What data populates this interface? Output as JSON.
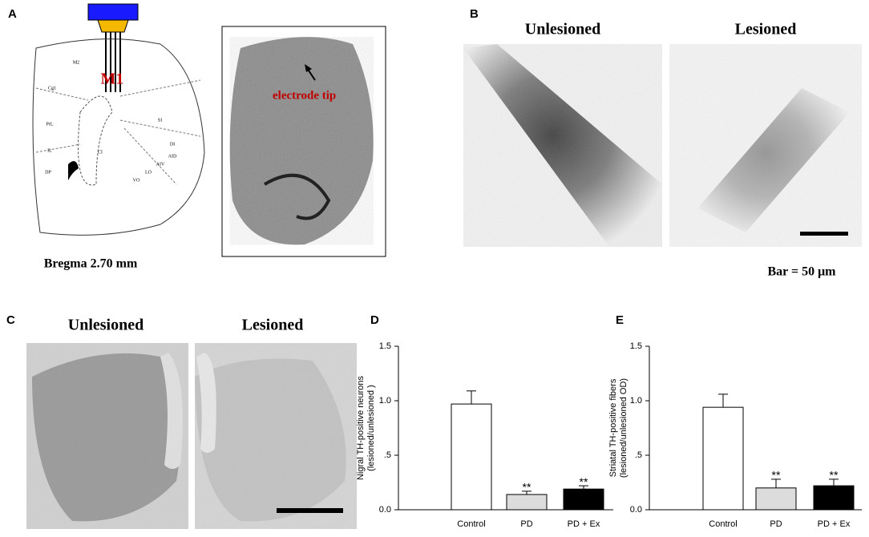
{
  "panels": {
    "A": {
      "label": "A",
      "region": "M1",
      "caption": "Bregma 2.70 mm",
      "annotation": "electrode tip",
      "atlas_labels": [
        "M2",
        "Cg1",
        "PrL",
        "IL",
        "DP",
        "Cl",
        "S1",
        "AIV",
        "LO",
        "VO",
        "AID",
        "DI"
      ]
    },
    "B": {
      "label": "B",
      "left_title": "Unlesioned",
      "right_title": "Lesioned",
      "scale": "Bar = 50 μm"
    },
    "C": {
      "label": "C",
      "left_title": "Unlesioned",
      "right_title": "Lesioned"
    }
  },
  "chart_data": [
    {
      "type": "bar",
      "label": "D",
      "ylabel": [
        "Nigral TH-positive neurons",
        "(lesioned/unlesioned )"
      ],
      "categories": [
        "Control",
        "PD",
        "PD + Ex"
      ],
      "values": [
        0.97,
        0.14,
        0.19
      ],
      "errors": [
        0.12,
        0.03,
        0.03
      ],
      "value_annotations": [
        null,
        "**",
        "**"
      ],
      "colors": [
        "#ffffff",
        "#dcdcdc",
        "#000000"
      ],
      "ylim": [
        0,
        1.5
      ],
      "yticks": [
        {
          "value": 0,
          "label": "0.0"
        },
        {
          "value": 0.5,
          "label": ".5"
        },
        {
          "value": 1,
          "label": "1.0"
        },
        {
          "value": 1.5,
          "label": "1.5"
        }
      ]
    },
    {
      "type": "bar",
      "label": "E",
      "ylabel": [
        "Striatal TH-positive fibers",
        "(lesioned/unlesioned OD)"
      ],
      "categories": [
        "Control",
        "PD",
        "PD + Ex"
      ],
      "values": [
        0.94,
        0.2,
        0.22
      ],
      "errors": [
        0.12,
        0.08,
        0.06
      ],
      "value_annotations": [
        null,
        "**",
        "**"
      ],
      "colors": [
        "#ffffff",
        "#dcdcdc",
        "#000000"
      ],
      "ylim": [
        0,
        1.5
      ],
      "yticks": [
        {
          "value": 0,
          "label": "0.0"
        },
        {
          "value": 0.5,
          "label": ".5"
        },
        {
          "value": 1,
          "label": "1.0"
        },
        {
          "value": 1.5,
          "label": "1.5"
        }
      ]
    }
  ]
}
